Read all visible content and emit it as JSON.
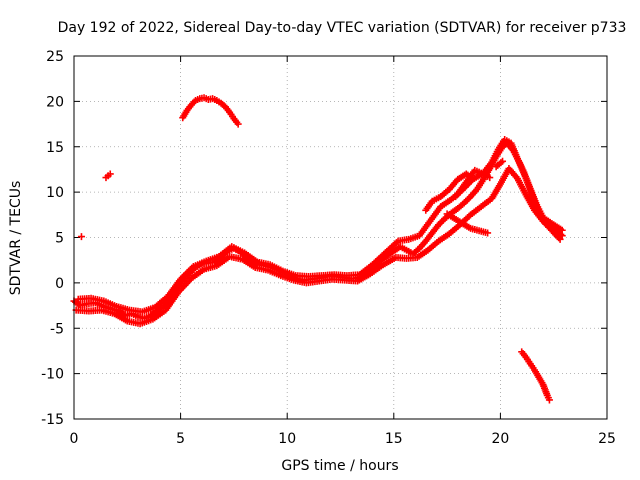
{
  "chart_data": {
    "type": "scatter",
    "title": "Day 192 of 2022, Sidereal Day-to-day VTEC variation (SDTVAR) for receiver p733",
    "xlabel": "GPS time / hours",
    "ylabel": "SDTVAR / TECUs",
    "xlim": [
      0,
      25
    ],
    "ylim": [
      -15,
      25
    ],
    "x_ticks": [
      0,
      5,
      10,
      15,
      20,
      25
    ],
    "y_ticks": [
      -15,
      -10,
      -5,
      0,
      5,
      10,
      15,
      20,
      25
    ],
    "grid": true,
    "marker": "plus",
    "colors": {
      "series": "#ff0000",
      "axes": "#000000",
      "grid": "#a0a0a0"
    },
    "series": [
      {
        "name": "main",
        "points": [
          [
            0.0,
            -2
          ],
          [
            0.3,
            -2.5
          ],
          [
            0.6,
            -2.3
          ],
          [
            1.0,
            -2.2
          ],
          [
            1.4,
            -2.6
          ],
          [
            1.8,
            -2.9
          ],
          [
            2.1,
            -3.1
          ],
          [
            2.4,
            -3.6
          ],
          [
            2.7,
            -3.4
          ],
          [
            3.0,
            -3.7
          ],
          [
            3.3,
            -3.9
          ],
          [
            3.6,
            -3.6
          ],
          [
            3.9,
            -3.1
          ],
          [
            4.2,
            -2.5
          ],
          [
            4.5,
            -1.6
          ],
          [
            4.8,
            -0.6
          ],
          [
            5.1,
            0.3
          ],
          [
            5.4,
            1.0
          ],
          [
            5.7,
            1.7
          ],
          [
            6.0,
            2.1
          ],
          [
            6.3,
            2.2
          ],
          [
            6.6,
            2.3
          ],
          [
            6.9,
            2.8
          ],
          [
            7.2,
            3.5
          ],
          [
            7.5,
            3.8
          ],
          [
            7.8,
            3.4
          ],
          [
            8.1,
            2.8
          ],
          [
            8.4,
            2.2
          ],
          [
            8.7,
            2.0
          ],
          [
            9.0,
            1.9
          ],
          [
            9.3,
            1.7
          ],
          [
            9.6,
            1.4
          ],
          [
            9.9,
            1.0
          ],
          [
            10.2,
            0.7
          ],
          [
            10.5,
            0.4
          ],
          [
            10.8,
            0.3
          ],
          [
            11.1,
            0.4
          ],
          [
            11.4,
            0.5
          ],
          [
            11.7,
            0.6
          ],
          [
            12.0,
            0.8
          ],
          [
            12.3,
            0.7
          ],
          [
            12.6,
            0.6
          ],
          [
            12.9,
            0.5
          ],
          [
            13.2,
            0.5
          ],
          [
            13.5,
            0.7
          ],
          [
            13.8,
            1.2
          ],
          [
            14.1,
            1.8
          ],
          [
            14.4,
            2.5
          ],
          [
            14.7,
            3.0
          ],
          [
            15.0,
            3.5
          ],
          [
            15.3,
            4.0
          ],
          [
            15.6,
            3.6
          ],
          [
            15.9,
            3.2
          ],
          [
            16.2,
            3.8
          ],
          [
            16.5,
            4.6
          ],
          [
            16.8,
            5.5
          ],
          [
            17.1,
            6.4
          ],
          [
            17.4,
            7.1
          ],
          [
            17.7,
            7.7
          ],
          [
            18.0,
            8.2
          ],
          [
            18.3,
            8.8
          ],
          [
            18.6,
            9.5
          ],
          [
            18.9,
            10.3
          ],
          [
            19.2,
            11.4
          ],
          [
            19.5,
            12.6
          ],
          [
            19.8,
            13.9
          ],
          [
            20.1,
            15.0
          ],
          [
            20.3,
            15.4
          ],
          [
            20.6,
            14.6
          ],
          [
            20.9,
            13.2
          ],
          [
            21.2,
            11.5
          ],
          [
            21.5,
            9.6
          ],
          [
            21.8,
            7.8
          ],
          [
            22.1,
            6.6
          ],
          [
            22.4,
            6.1
          ],
          [
            22.7,
            5.6
          ],
          [
            22.9,
            5.2
          ]
        ]
      },
      {
        "name": "band-upper",
        "points": [
          [
            0.2,
            -1.8
          ],
          [
            0.8,
            -1.7
          ],
          [
            1.4,
            -2.0
          ],
          [
            2.0,
            -2.6
          ],
          [
            2.6,
            -3.0
          ],
          [
            3.2,
            -3.2
          ],
          [
            3.8,
            -2.7
          ],
          [
            4.4,
            -1.5
          ],
          [
            5.0,
            0.4
          ],
          [
            5.6,
            1.8
          ],
          [
            6.2,
            2.4
          ],
          [
            6.8,
            2.9
          ],
          [
            7.4,
            4.0
          ],
          [
            8.0,
            3.3
          ],
          [
            8.6,
            2.3
          ],
          [
            9.2,
            2.0
          ],
          [
            9.8,
            1.3
          ],
          [
            10.4,
            0.8
          ],
          [
            11.0,
            0.7
          ],
          [
            11.6,
            0.8
          ],
          [
            12.2,
            0.9
          ],
          [
            12.8,
            0.8
          ],
          [
            13.4,
            0.9
          ],
          [
            14.0,
            2.0
          ],
          [
            14.6,
            3.3
          ],
          [
            15.2,
            4.6
          ],
          [
            15.7,
            4.8
          ],
          [
            16.2,
            5.2
          ],
          [
            16.7,
            6.8
          ],
          [
            17.2,
            8.4
          ],
          [
            17.7,
            9.2
          ],
          [
            18.2,
            10.2
          ],
          [
            18.7,
            11.4
          ],
          [
            19.2,
            12.1
          ],
          [
            19.6,
            13.3
          ],
          [
            19.9,
            14.7
          ],
          [
            20.2,
            15.8
          ],
          [
            20.5,
            15.4
          ],
          [
            20.8,
            13.7
          ],
          [
            21.1,
            12.2
          ],
          [
            21.4,
            10.4
          ],
          [
            21.7,
            8.6
          ],
          [
            22.0,
            7.2
          ],
          [
            22.5,
            6.4
          ],
          [
            22.9,
            5.8
          ]
        ]
      },
      {
        "name": "band-lower",
        "points": [
          [
            0.1,
            -3.0
          ],
          [
            0.7,
            -3.1
          ],
          [
            1.3,
            -3.0
          ],
          [
            1.9,
            -3.4
          ],
          [
            2.5,
            -4.2
          ],
          [
            3.1,
            -4.5
          ],
          [
            3.7,
            -4.0
          ],
          [
            4.3,
            -3.0
          ],
          [
            4.9,
            -1.0
          ],
          [
            5.5,
            0.5
          ],
          [
            6.1,
            1.5
          ],
          [
            6.7,
            1.9
          ],
          [
            7.3,
            2.9
          ],
          [
            7.9,
            2.6
          ],
          [
            8.5,
            1.7
          ],
          [
            9.1,
            1.4
          ],
          [
            9.7,
            0.8
          ],
          [
            10.3,
            0.3
          ],
          [
            10.9,
            0.0
          ],
          [
            11.5,
            0.2
          ],
          [
            12.1,
            0.4
          ],
          [
            12.7,
            0.3
          ],
          [
            13.3,
            0.2
          ],
          [
            13.9,
            1.0
          ],
          [
            14.5,
            2.0
          ],
          [
            15.1,
            2.8
          ],
          [
            15.6,
            2.7
          ],
          [
            16.1,
            2.8
          ],
          [
            16.6,
            3.6
          ],
          [
            17.1,
            4.6
          ],
          [
            17.6,
            5.4
          ],
          [
            18.1,
            6.4
          ],
          [
            18.6,
            7.5
          ],
          [
            19.1,
            8.4
          ],
          [
            19.6,
            9.3
          ],
          [
            20.0,
            10.9
          ],
          [
            20.4,
            12.6
          ],
          [
            20.8,
            11.5
          ],
          [
            21.2,
            9.7
          ],
          [
            21.6,
            8.0
          ],
          [
            22.0,
            6.8
          ],
          [
            22.4,
            5.8
          ],
          [
            22.8,
            4.8
          ]
        ]
      },
      {
        "name": "dawn-bumps",
        "points": [
          [
            16.5,
            8.0
          ],
          [
            16.8,
            9.0
          ],
          [
            17.2,
            9.5
          ],
          [
            17.6,
            10.3
          ],
          [
            18.0,
            11.4
          ],
          [
            18.4,
            12.0
          ],
          [
            18.7,
            11.5
          ],
          [
            18.3,
            10.6
          ],
          [
            17.9,
            9.5
          ],
          [
            18.8,
            12.4
          ],
          [
            19.2,
            12.0
          ],
          [
            19.5,
            11.6
          ],
          [
            17.5,
            7.6
          ],
          [
            18.6,
            6.0
          ],
          [
            19.4,
            5.5
          ],
          [
            19.8,
            12.8
          ],
          [
            20.1,
            13.4
          ]
        ]
      },
      {
        "name": "arc-high",
        "points": [
          [
            5.1,
            18.2
          ],
          [
            5.3,
            19.0
          ],
          [
            5.5,
            19.6
          ],
          [
            5.7,
            20.1
          ],
          [
            5.9,
            20.3
          ],
          [
            6.1,
            20.4
          ],
          [
            6.3,
            20.2
          ],
          [
            6.5,
            20.3
          ],
          [
            6.7,
            20.1
          ],
          [
            6.9,
            19.8
          ],
          [
            7.1,
            19.4
          ],
          [
            7.3,
            18.8
          ],
          [
            7.5,
            18.1
          ],
          [
            7.7,
            17.5
          ]
        ]
      },
      {
        "name": "isolated",
        "points": [
          [
            0.35,
            5.1
          ],
          [
            1.5,
            11.6
          ],
          [
            1.6,
            11.8
          ],
          [
            1.7,
            12.0
          ]
        ]
      },
      {
        "name": "negative-tail",
        "points": [
          [
            21.0,
            -7.6
          ],
          [
            21.2,
            -8.2
          ],
          [
            21.4,
            -8.9
          ],
          [
            21.6,
            -9.6
          ],
          [
            21.8,
            -10.4
          ],
          [
            22.0,
            -11.2
          ],
          [
            22.1,
            -11.8
          ],
          [
            22.2,
            -12.4
          ],
          [
            22.3,
            -12.9
          ]
        ]
      }
    ]
  }
}
